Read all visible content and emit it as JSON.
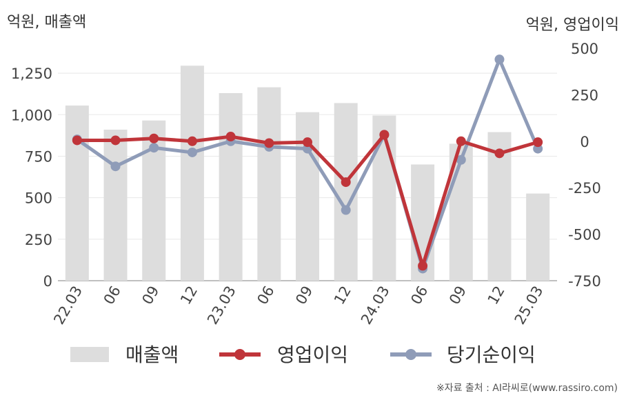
{
  "left_unit_label": "억원, 매출액",
  "right_unit_label": "억원, 영업이익",
  "footer": "※자료 출처 : AI라씨로(www.rassiro.com)",
  "colors": {
    "bar": "#dddddd",
    "operating": "#c0353a",
    "net": "#8f9cb8",
    "grid": "#e8e8e8",
    "axis": "#aaaaaa"
  },
  "chart_data": {
    "type": "bar+line",
    "categories": [
      "22.03",
      "06",
      "09",
      "12",
      "23.03",
      "06",
      "09",
      "12",
      "24.03",
      "06",
      "09",
      "12",
      "25.03"
    ],
    "left_axis": {
      "ticks": [
        "0",
        "250",
        "500",
        "750",
        "1,000",
        "1,250"
      ],
      "ylim": [
        0,
        1400
      ]
    },
    "right_axis": {
      "ticks": [
        "-750",
        "-500",
        "-250",
        "0",
        "250",
        "500"
      ],
      "ylim": [
        -750,
        500
      ]
    },
    "series": [
      {
        "name": "매출액",
        "type": "bar",
        "axis": "left",
        "values": [
          1055,
          910,
          965,
          1295,
          1130,
          1165,
          1015,
          1070,
          995,
          700,
          825,
          895,
          525
        ]
      },
      {
        "name": "영업이익",
        "type": "line",
        "axis": "right",
        "values": [
          5,
          5,
          15,
          0,
          25,
          -10,
          -5,
          -220,
          35,
          -670,
          0,
          -65,
          -5
        ]
      },
      {
        "name": "당기순이익",
        "type": "line",
        "axis": "right",
        "values": [
          10,
          -135,
          -35,
          -60,
          0,
          -30,
          -40,
          -370,
          35,
          -685,
          -100,
          440,
          -40
        ]
      }
    ],
    "legend_placement": "bottom"
  }
}
